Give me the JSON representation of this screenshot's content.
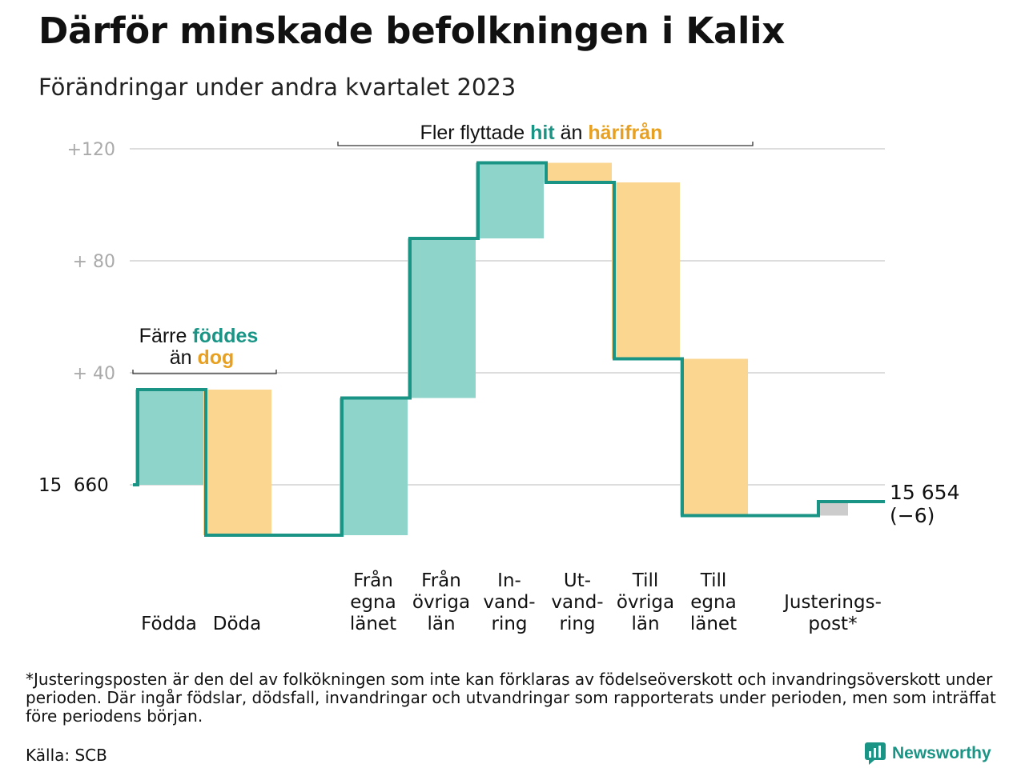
{
  "title": "Därför minskade befolkningen i Kalix",
  "subtitle": "Förändringar under andra kvartalet 2023",
  "colors": {
    "increase": "#8fd4ca",
    "decrease": "#fad690",
    "adjust": "#cccccc",
    "line": "#1a9485",
    "accent_up": "#1a9485",
    "accent_down": "#e8a020",
    "grid": "#dddddd"
  },
  "annotations": {
    "births_pre": "Färre ",
    "births_hl": "föddes",
    "births_mid": "än ",
    "births_hl2": "dog",
    "moves_pre": "Fler flyttade ",
    "moves_hl": "hit",
    "moves_mid": " än ",
    "moves_hl2": "härifrån"
  },
  "start_label": "15  660",
  "end_label": {
    "value": "15 654",
    "change": "(−6)"
  },
  "footnote": "*Justeringsposten är den del av folkökningen som inte kan förklaras av födelseöverskott och invandringsöverskott under perioden. Där ingår födslar, dödsfall, invandringar och utvandringar som rapporterats under perioden, men som inträffat före periodens början.",
  "source": "Källa: SCB",
  "brand": "Newsworthy",
  "chart_data": {
    "type": "waterfall",
    "title": "Därför minskade befolkningen i Kalix",
    "subtitle": "Förändringar under andra kvartalet 2023",
    "base": 15660,
    "ylim": [
      -25,
      125
    ],
    "y_ticks": [
      {
        "value": 120,
        "label": "+120"
      },
      {
        "value": 80,
        "label": "+  80"
      },
      {
        "value": 40,
        "label": "+  40"
      }
    ],
    "grid": true,
    "steps": [
      {
        "label": [
          "Födda"
        ],
        "change": 34,
        "kind": "increase",
        "group": "births"
      },
      {
        "label": [
          "Döda"
        ],
        "change": -52,
        "kind": "decrease",
        "group": "births"
      },
      {
        "label": [
          "Från",
          "egna",
          "länet"
        ],
        "change": 49,
        "kind": "increase",
        "group": "moves"
      },
      {
        "label": [
          "Från",
          "övriga",
          "län"
        ],
        "change": 57,
        "kind": "increase",
        "group": "moves"
      },
      {
        "label": [
          "In-",
          "vand-",
          "ring"
        ],
        "change": 27,
        "kind": "increase",
        "group": "moves"
      },
      {
        "label": [
          "Ut-",
          "vand-",
          "ring"
        ],
        "change": -7,
        "kind": "decrease",
        "group": "moves"
      },
      {
        "label": [
          "Till",
          "övriga",
          "län"
        ],
        "change": -63,
        "kind": "decrease",
        "group": "moves"
      },
      {
        "label": [
          "Till",
          "egna",
          "länet"
        ],
        "change": -56,
        "kind": "decrease",
        "group": "moves"
      },
      {
        "label": [
          "Justerings-",
          "post*"
        ],
        "change": 5,
        "kind": "adjust",
        "group": "adjust"
      }
    ],
    "end_value": 15654,
    "net_change": -6
  }
}
